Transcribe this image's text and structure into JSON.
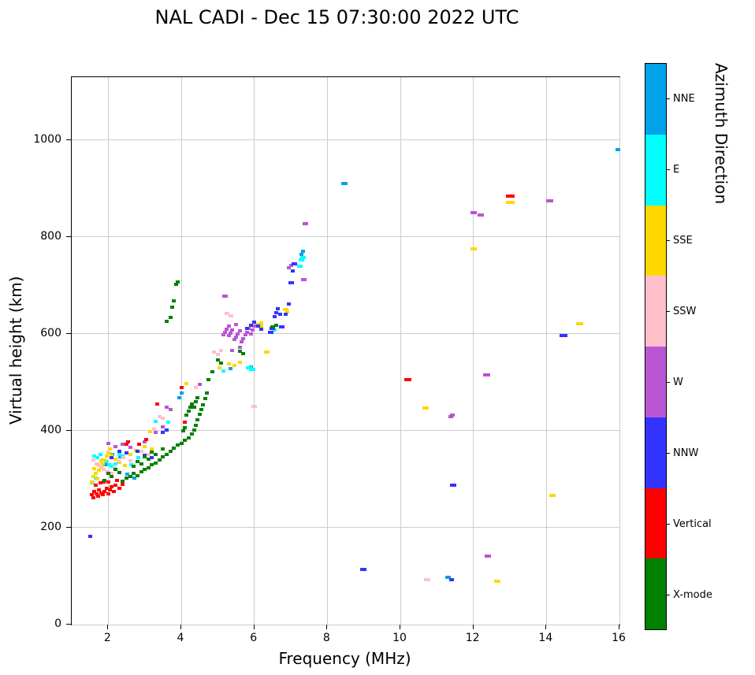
{
  "title": "NAL CADI - Dec 15 07:30:00 2022 UTC",
  "chart_data": {
    "type": "scatter",
    "title": "NAL CADI - Dec 15 07:30:00 2022 UTC",
    "xlabel": "Frequency (MHz)",
    "ylabel": "Virtual height (km)",
    "colorbar_label": "Azimuth Direction",
    "xlim": [
      1,
      16
    ],
    "ylim": [
      0,
      1130
    ],
    "x_ticks": [
      2,
      4,
      6,
      8,
      10,
      12,
      14,
      16
    ],
    "y_ticks": [
      0,
      200,
      400,
      600,
      800,
      1000
    ],
    "grid": true,
    "grid_color": "#cccccc",
    "marker": {
      "w": 5,
      "h": 4
    },
    "categories_top_to_bottom": [
      "NNE",
      "E",
      "SSE",
      "SSW",
      "W",
      "NNW",
      "Vertical",
      "X-mode"
    ],
    "colors": {
      "NNE": "#00A2E8",
      "E": "#00FFFF",
      "SSE": "#FFD700",
      "SSW": "#FFC0CB",
      "W": "#BA55D3",
      "NNW": "#3333FF",
      "Vertical": "#FF0000",
      "X-mode": "#008000"
    },
    "series": [
      {
        "name": "NNE",
        "color": "#00A2E8",
        "points": [
          [
            2.12,
            352
          ],
          [
            2.32,
            346
          ],
          [
            1.92,
            330
          ],
          [
            2.52,
            310
          ],
          [
            2.72,
            302
          ],
          [
            3.95,
            468
          ],
          [
            4.0,
            478
          ],
          [
            5.35,
            528
          ],
          [
            5.9,
            532
          ],
          [
            7.3,
            764
          ],
          [
            7.34,
            770
          ],
          [
            8.47,
            911,
            8
          ],
          [
            11.3,
            97,
            7
          ],
          [
            15.95,
            980,
            6
          ]
        ]
      },
      {
        "name": "E",
        "color": "#00FFFF",
        "points": [
          [
            1.62,
            348
          ],
          [
            1.7,
            344
          ],
          [
            1.78,
            352
          ],
          [
            1.86,
            340
          ],
          [
            1.94,
            336
          ],
          [
            2.02,
            330
          ],
          [
            2.1,
            326
          ],
          [
            2.2,
            332
          ],
          [
            2.3,
            352
          ],
          [
            2.4,
            348
          ],
          [
            1.66,
            302
          ],
          [
            1.58,
            292
          ],
          [
            2.62,
            330
          ],
          [
            2.82,
            344
          ],
          [
            3.3,
            420
          ],
          [
            3.65,
            418
          ],
          [
            5.15,
            524
          ],
          [
            5.85,
            530,
            8
          ],
          [
            5.95,
            526,
            8
          ],
          [
            6.55,
            608
          ],
          [
            7.25,
            740,
            7
          ],
          [
            7.3,
            752,
            7
          ],
          [
            7.33,
            758,
            7
          ]
        ]
      },
      {
        "name": "SSE",
        "color": "#FFD700",
        "points": [
          [
            1.55,
            295
          ],
          [
            1.6,
            305
          ],
          [
            1.65,
            312
          ],
          [
            1.7,
            300
          ],
          [
            1.75,
            318
          ],
          [
            1.8,
            325
          ],
          [
            1.85,
            332
          ],
          [
            1.9,
            340
          ],
          [
            1.95,
            348
          ],
          [
            2.0,
            355
          ],
          [
            2.05,
            362
          ],
          [
            2.1,
            350
          ],
          [
            2.2,
            342
          ],
          [
            2.3,
            335
          ],
          [
            2.45,
            328
          ],
          [
            2.6,
            352
          ],
          [
            2.75,
            360
          ],
          [
            3.0,
            368
          ],
          [
            3.2,
            362
          ],
          [
            1.62,
            322
          ],
          [
            1.72,
            330
          ],
          [
            1.82,
            338
          ],
          [
            3.15,
            398
          ],
          [
            4.15,
            498
          ],
          [
            5.05,
            530
          ],
          [
            5.3,
            538
          ],
          [
            5.45,
            535
          ],
          [
            5.6,
            542
          ],
          [
            6.1,
            620,
            9
          ],
          [
            6.16,
            616,
            7
          ],
          [
            6.2,
            622
          ],
          [
            6.35,
            563,
            7
          ],
          [
            6.85,
            650,
            7
          ],
          [
            6.9,
            645
          ],
          [
            10.7,
            447,
            8
          ],
          [
            12.0,
            776,
            8
          ],
          [
            12.66,
            89,
            8
          ],
          [
            13.0,
            872,
            11
          ],
          [
            14.17,
            267,
            8
          ],
          [
            14.9,
            621,
            9
          ]
        ]
      },
      {
        "name": "SSW",
        "color": "#FFC0CB",
        "points": [
          [
            1.6,
            340
          ],
          [
            1.68,
            332
          ],
          [
            1.78,
            326
          ],
          [
            1.88,
            320
          ],
          [
            1.98,
            315
          ],
          [
            2.08,
            312
          ],
          [
            2.18,
            324
          ],
          [
            2.28,
            338
          ],
          [
            2.42,
            344
          ],
          [
            2.6,
            338
          ],
          [
            2.9,
            358
          ],
          [
            3.1,
            352
          ],
          [
            3.25,
            404
          ],
          [
            3.4,
            430
          ],
          [
            3.5,
            426
          ],
          [
            4.4,
            490
          ],
          [
            4.9,
            562
          ],
          [
            5.0,
            558
          ],
          [
            5.1,
            566
          ],
          [
            5.25,
            642,
            6
          ],
          [
            5.35,
            638,
            6
          ],
          [
            6.0,
            450,
            7
          ],
          [
            10.74,
            93,
            8
          ]
        ]
      },
      {
        "name": "W",
        "color": "#BA55D3",
        "points": [
          [
            2.0,
            374
          ],
          [
            2.2,
            368
          ],
          [
            2.4,
            372
          ],
          [
            2.6,
            366
          ],
          [
            3.0,
            378
          ],
          [
            3.3,
            396
          ],
          [
            3.5,
            408
          ],
          [
            3.6,
            448
          ],
          [
            3.7,
            444
          ],
          [
            4.5,
            496
          ],
          [
            5.15,
            598
          ],
          [
            5.2,
            604
          ],
          [
            5.25,
            610
          ],
          [
            5.3,
            596
          ],
          [
            5.35,
            602
          ],
          [
            5.4,
            608
          ],
          [
            5.45,
            588
          ],
          [
            5.5,
            594
          ],
          [
            5.55,
            600
          ],
          [
            5.6,
            606
          ],
          [
            5.65,
            584
          ],
          [
            5.7,
            590
          ],
          [
            5.75,
            598
          ],
          [
            5.8,
            604
          ],
          [
            5.85,
            612
          ],
          [
            5.9,
            600
          ],
          [
            5.95,
            608
          ],
          [
            6.0,
            616
          ],
          [
            5.3,
            616
          ],
          [
            5.5,
            620
          ],
          [
            5.2,
            678,
            7
          ],
          [
            5.4,
            566
          ],
          [
            5.6,
            572
          ],
          [
            6.95,
            736
          ],
          [
            7.0,
            742
          ],
          [
            7.35,
            712,
            7
          ],
          [
            7.4,
            828,
            7
          ],
          [
            11.38,
            429,
            6
          ],
          [
            11.43,
            432,
            6
          ],
          [
            12.0,
            850,
            8
          ],
          [
            12.2,
            845,
            8
          ],
          [
            12.37,
            515,
            9
          ],
          [
            12.4,
            142,
            8
          ],
          [
            14.1,
            875,
            9
          ]
        ]
      },
      {
        "name": "NNW",
        "color": "#3333FF",
        "points": [
          [
            1.5,
            182
          ],
          [
            2.1,
            345
          ],
          [
            2.3,
            358
          ],
          [
            2.5,
            354
          ],
          [
            2.8,
            358
          ],
          [
            3.0,
            350
          ],
          [
            3.2,
            344
          ],
          [
            3.5,
            396
          ],
          [
            3.6,
            402
          ],
          [
            5.8,
            612
          ],
          [
            5.9,
            618
          ],
          [
            6.0,
            624
          ],
          [
            6.1,
            616
          ],
          [
            6.2,
            610
          ],
          [
            6.45,
            604,
            7
          ],
          [
            6.5,
            612,
            7
          ],
          [
            6.55,
            636
          ],
          [
            6.6,
            644
          ],
          [
            6.65,
            652
          ],
          [
            6.7,
            640
          ],
          [
            6.75,
            615,
            7
          ],
          [
            6.85,
            640
          ],
          [
            6.95,
            662
          ],
          [
            7.0,
            706,
            7
          ],
          [
            7.05,
            730
          ],
          [
            7.1,
            744,
            7
          ],
          [
            8.99,
            114,
            8
          ],
          [
            11.4,
            93,
            6
          ],
          [
            11.45,
            288,
            8
          ],
          [
            14.47,
            597,
            10
          ]
        ]
      },
      {
        "name": "Vertical",
        "color": "#FF0000",
        "points": [
          [
            1.55,
            268
          ],
          [
            1.6,
            262
          ],
          [
            1.62,
            275
          ],
          [
            1.68,
            270
          ],
          [
            1.72,
            265
          ],
          [
            1.75,
            278
          ],
          [
            1.8,
            272
          ],
          [
            1.85,
            268
          ],
          [
            1.9,
            275
          ],
          [
            1.95,
            282
          ],
          [
            2.0,
            270
          ],
          [
            2.05,
            278
          ],
          [
            2.1,
            285
          ],
          [
            2.15,
            275
          ],
          [
            2.2,
            288
          ],
          [
            2.3,
            282
          ],
          [
            2.4,
            290
          ],
          [
            1.65,
            288
          ],
          [
            1.78,
            292
          ],
          [
            1.88,
            295
          ],
          [
            2.0,
            295
          ],
          [
            2.25,
            298
          ],
          [
            2.5,
            372
          ],
          [
            2.55,
            378
          ],
          [
            2.85,
            372
          ],
          [
            3.05,
            382
          ],
          [
            3.35,
            455
          ],
          [
            4.0,
            490
          ],
          [
            4.1,
            418
          ],
          [
            10.2,
            505,
            9
          ],
          [
            13.0,
            885,
            11
          ]
        ]
      },
      {
        "name": "X-mode",
        "color": "#008000",
        "points": [
          [
            1.9,
            298
          ],
          [
            2.0,
            312
          ],
          [
            2.1,
            306
          ],
          [
            2.2,
            320
          ],
          [
            2.3,
            314
          ],
          [
            2.4,
            296
          ],
          [
            2.5,
            302
          ],
          [
            2.6,
            306
          ],
          [
            2.7,
            312
          ],
          [
            2.7,
            326
          ],
          [
            2.8,
            308
          ],
          [
            2.8,
            336
          ],
          [
            2.9,
            316
          ],
          [
            2.9,
            332
          ],
          [
            3.0,
            320
          ],
          [
            3.0,
            346
          ],
          [
            3.1,
            324
          ],
          [
            3.1,
            342
          ],
          [
            3.2,
            330
          ],
          [
            3.2,
            356
          ],
          [
            3.3,
            334
          ],
          [
            3.3,
            352
          ],
          [
            3.4,
            340
          ],
          [
            3.5,
            346
          ],
          [
            3.5,
            362
          ],
          [
            3.6,
            352
          ],
          [
            3.7,
            358
          ],
          [
            3.8,
            364
          ],
          [
            3.9,
            370
          ],
          [
            4.0,
            374
          ],
          [
            4.05,
            400
          ],
          [
            4.1,
            380
          ],
          [
            4.1,
            406
          ],
          [
            4.15,
            432
          ],
          [
            4.2,
            386
          ],
          [
            4.2,
            440
          ],
          [
            4.25,
            448
          ],
          [
            4.3,
            394
          ],
          [
            4.3,
            456
          ],
          [
            4.35,
            402
          ],
          [
            4.35,
            448
          ],
          [
            4.4,
            412
          ],
          [
            4.4,
            460
          ],
          [
            4.45,
            422
          ],
          [
            4.45,
            468
          ],
          [
            4.5,
            434
          ],
          [
            4.55,
            444
          ],
          [
            4.6,
            454
          ],
          [
            4.65,
            466
          ],
          [
            4.7,
            478
          ],
          [
            4.75,
            505
          ],
          [
            4.85,
            522
          ],
          [
            5.0,
            546
          ],
          [
            5.1,
            540
          ],
          [
            5.6,
            564
          ],
          [
            5.7,
            560
          ],
          [
            6.5,
            614
          ],
          [
            6.6,
            618
          ],
          [
            3.6,
            626
          ],
          [
            3.7,
            634
          ],
          [
            3.75,
            656
          ],
          [
            3.8,
            668
          ],
          [
            3.85,
            702
          ],
          [
            3.9,
            708
          ]
        ]
      }
    ]
  }
}
